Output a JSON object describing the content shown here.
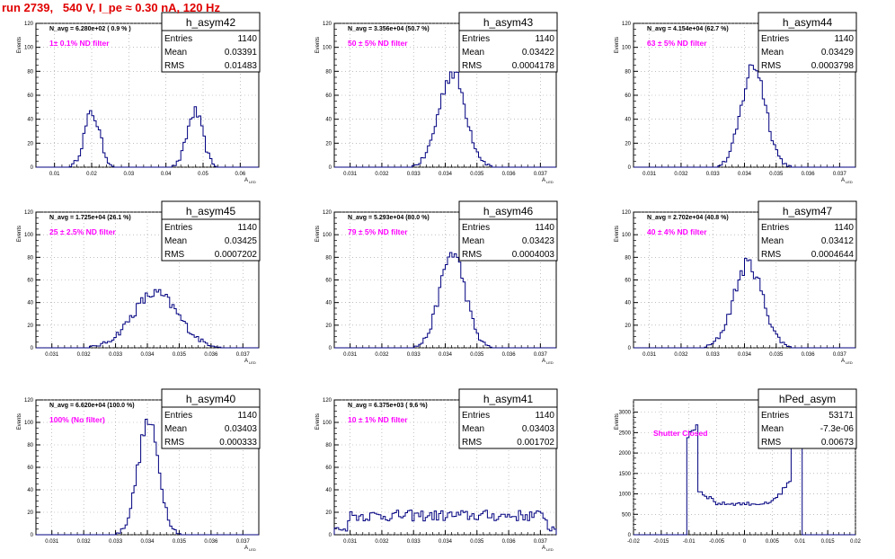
{
  "title": "run 2739,   540 V, I_pe ≈ 0.30 nA, 120 Hz",
  "stat_labels": {
    "entries": "Entries",
    "mean": "Mean",
    "rms": "RMS"
  },
  "yaxis_label": "Events",
  "xaxis_label": "A",
  "xaxis_label_sub": "LED",
  "chart_data": [
    {
      "type": "histogram",
      "name": "h_asym42",
      "navg": "N_avg = 6.280e+02 ( 0.9 % )",
      "filter": "1± 0.1% ND filter",
      "entries": "1140",
      "mean": "0.03391",
      "rms": "0.01483",
      "xlim": [
        0.005,
        0.065
      ],
      "ylim": [
        0,
        120
      ],
      "xticks": [
        0.01,
        0.02,
        0.03,
        0.04,
        0.05,
        0.06
      ],
      "xticklabels": [
        "0.01",
        "0.02",
        "0.03",
        "0.04",
        "0.05",
        "0.06"
      ],
      "yticks": [
        0,
        20,
        40,
        60,
        80,
        100,
        120
      ],
      "peaks": [
        {
          "c": 0.0201,
          "s": 0.0021,
          "a": 45
        },
        {
          "c": 0.0478,
          "s": 0.0021,
          "a": 46
        }
      ]
    },
    {
      "type": "histogram",
      "name": "h_asym43",
      "navg": "N_avg = 3.356e+04 (50.7 %)",
      "filter": "50 ± 5% ND filter",
      "entries": "1140",
      "mean": "0.03422",
      "rms": "0.0004178",
      "xlim": [
        0.0305,
        0.0375
      ],
      "ylim": [
        0,
        120
      ],
      "xticks": [
        0.031,
        0.032,
        0.033,
        0.034,
        0.035,
        0.036,
        0.037
      ],
      "xticklabels": [
        "0.031",
        "0.032",
        "0.033",
        "0.034",
        "0.035",
        "0.036",
        "0.037"
      ],
      "yticks": [
        0,
        20,
        40,
        60,
        80,
        100,
        120
      ],
      "peaks": [
        {
          "c": 0.03422,
          "s": 0.00042,
          "a": 79
        }
      ]
    },
    {
      "type": "histogram",
      "name": "h_asym44",
      "navg": "N_avg = 4.154e+04 (62.7 %)",
      "filter": "63 ± 5% ND filter",
      "entries": "1140",
      "mean": "0.03429",
      "rms": "0.0003798",
      "xlim": [
        0.0305,
        0.0375
      ],
      "ylim": [
        0,
        120
      ],
      "xticks": [
        0.031,
        0.032,
        0.033,
        0.034,
        0.035,
        0.036,
        0.037
      ],
      "xticklabels": [
        "0.031",
        "0.032",
        "0.033",
        "0.034",
        "0.035",
        "0.036",
        "0.037"
      ],
      "yticks": [
        0,
        20,
        40,
        60,
        80,
        100,
        120
      ],
      "peaks": [
        {
          "c": 0.03429,
          "s": 0.00038,
          "a": 85
        }
      ]
    },
    {
      "type": "histogram",
      "name": "h_asym45",
      "navg": "N_avg = 1.725e+04 (26.1 %)",
      "filter": "25 ± 2.5% ND filter",
      "entries": "1140",
      "mean": "0.03425",
      "rms": "0.0007202",
      "xlim": [
        0.0305,
        0.0375
      ],
      "ylim": [
        0,
        120
      ],
      "xticks": [
        0.031,
        0.032,
        0.033,
        0.034,
        0.035,
        0.036,
        0.037
      ],
      "xticklabels": [
        "0.031",
        "0.032",
        "0.033",
        "0.034",
        "0.035",
        "0.036",
        "0.037"
      ],
      "yticks": [
        0,
        20,
        40,
        60,
        80,
        100,
        120
      ],
      "peaks": [
        {
          "c": 0.03425,
          "s": 0.00072,
          "a": 48
        }
      ]
    },
    {
      "type": "histogram",
      "name": "h_asym46",
      "navg": "N_avg = 5.293e+04 (80.0 %)",
      "filter": "79 ± 5% ND filter",
      "entries": "1140",
      "mean": "0.03423",
      "rms": "0.0004003",
      "xlim": [
        0.0305,
        0.0375
      ],
      "ylim": [
        0,
        120
      ],
      "xticks": [
        0.031,
        0.032,
        0.033,
        0.034,
        0.035,
        0.036,
        0.037
      ],
      "xticklabels": [
        "0.031",
        "0.032",
        "0.033",
        "0.034",
        "0.035",
        "0.036",
        "0.037"
      ],
      "yticks": [
        0,
        20,
        40,
        60,
        80,
        100,
        120
      ],
      "peaks": [
        {
          "c": 0.03423,
          "s": 0.0004,
          "a": 84
        }
      ]
    },
    {
      "type": "histogram",
      "name": "h_asym47",
      "navg": "N_avg = 2.702e+04 (40.8 %)",
      "filter": "40 ± 4% ND filter",
      "entries": "1140",
      "mean": "0.03412",
      "rms": "0.0004644",
      "xlim": [
        0.0305,
        0.0375
      ],
      "ylim": [
        0,
        120
      ],
      "xticks": [
        0.031,
        0.032,
        0.033,
        0.034,
        0.035,
        0.036,
        0.037
      ],
      "xticklabels": [
        "0.031",
        "0.032",
        "0.033",
        "0.034",
        "0.035",
        "0.036",
        "0.037"
      ],
      "yticks": [
        0,
        20,
        40,
        60,
        80,
        100,
        120
      ],
      "peaks": [
        {
          "c": 0.03412,
          "s": 0.00046,
          "a": 74
        }
      ]
    },
    {
      "type": "histogram",
      "name": "h_asym40",
      "navg": "N_avg = 6.620e+04 (100.0 %)",
      "filter": "100% (No filter)",
      "entries": "1140",
      "mean": "0.03403",
      "rms": "0.000333",
      "xlim": [
        0.0305,
        0.0375
      ],
      "ylim": [
        0,
        120
      ],
      "xticks": [
        0.031,
        0.032,
        0.033,
        0.034,
        0.035,
        0.036,
        0.037
      ],
      "xticklabels": [
        "0.031",
        "0.032",
        "0.033",
        "0.034",
        "0.035",
        "0.036",
        "0.037"
      ],
      "yticks": [
        0,
        20,
        40,
        60,
        80,
        100,
        120
      ],
      "peaks": [
        {
          "c": 0.03403,
          "s": 0.00033,
          "a": 100
        }
      ]
    },
    {
      "type": "histogram",
      "name": "h_asym41",
      "navg": "N_avg = 6.375e+03 ( 9.6 %)",
      "filter": "10 ± 1% ND filter",
      "entries": "1140",
      "mean": "0.03403",
      "rms": "0.001702",
      "xlim": [
        0.0305,
        0.0375
      ],
      "ylim": [
        0,
        120
      ],
      "xticks": [
        0.031,
        0.032,
        0.033,
        0.034,
        0.035,
        0.036,
        0.037
      ],
      "xticklabels": [
        "0.031",
        "0.032",
        "0.033",
        "0.034",
        "0.035",
        "0.036",
        "0.037"
      ],
      "yticks": [
        0,
        20,
        40,
        60,
        80,
        100,
        120
      ],
      "flat": 17
    },
    {
      "type": "histogram",
      "name": "hPed_asym",
      "navg": "",
      "filter": "Shutter Closed",
      "entries": "53171",
      "mean": "-7.3e-06",
      "rms": "0.00673",
      "xlim": [
        -0.02,
        0.02
      ],
      "ylim": [
        0,
        3300
      ],
      "xticks": [
        -0.02,
        -0.015,
        -0.01,
        -0.005,
        0,
        0.005,
        0.01,
        0.015,
        0.02
      ],
      "xticklabels": [
        "-0.02",
        "-0.015",
        "-0.01",
        "-0.005",
        "0",
        "0.005",
        "0.01",
        "0.015",
        "0.02"
      ],
      "yticks": [
        0,
        500,
        1000,
        1500,
        2000,
        2500,
        3000
      ],
      "ped": true
    }
  ]
}
